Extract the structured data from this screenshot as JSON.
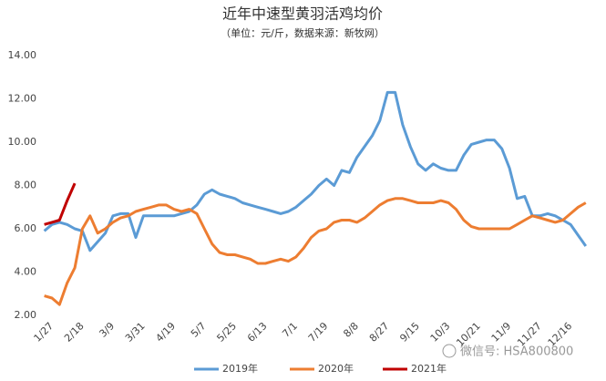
{
  "chart_data": {
    "type": "line",
    "title": "近年中速型黄羽活鸡均价",
    "subtitle": "（单位：元/斤，数据来源：新牧网）",
    "annotation": "微信号: HSA800800",
    "categories": [
      null,
      "1/27",
      null,
      null,
      null,
      "2/18",
      null,
      null,
      null,
      "3/9",
      null,
      null,
      null,
      "3/31",
      null,
      null,
      null,
      "4/19",
      null,
      null,
      null,
      "5/7",
      null,
      null,
      null,
      "5/25",
      null,
      null,
      null,
      "6/13",
      null,
      null,
      null,
      "7/1",
      null,
      null,
      null,
      "7/19",
      null,
      null,
      null,
      "8/8",
      null,
      null,
      null,
      "8/27",
      null,
      null,
      null,
      "9/15",
      null,
      null,
      null,
      "10/3",
      null,
      null,
      null,
      "10/21",
      null,
      null,
      null,
      "11/9",
      null,
      null,
      null,
      "11/27",
      null,
      null,
      null,
      "12/16",
      null,
      null
    ],
    "series": [
      {
        "name": "2019年",
        "color": "#5b9bd5",
        "values": [
          5.9,
          6.2,
          6.3,
          6.2,
          6.0,
          5.9,
          5.0,
          5.4,
          5.8,
          6.6,
          6.7,
          6.7,
          5.6,
          6.6,
          6.6,
          6.6,
          6.6,
          6.6,
          6.7,
          6.8,
          7.1,
          7.6,
          7.8,
          7.6,
          7.5,
          7.4,
          7.2,
          7.1,
          7.0,
          6.9,
          6.8,
          6.7,
          6.8,
          7.0,
          7.3,
          7.6,
          8.0,
          8.3,
          8.0,
          8.7,
          8.6,
          9.3,
          9.8,
          10.3,
          11.0,
          12.3,
          12.3,
          10.8,
          9.8,
          9.0,
          8.7,
          9.0,
          8.8,
          8.7,
          8.7,
          9.4,
          9.9,
          10.0,
          10.1,
          10.1,
          9.7,
          8.8,
          7.4,
          7.5,
          6.6,
          6.6,
          6.7,
          6.6,
          6.4,
          6.2,
          5.7,
          5.2
        ]
      },
      {
        "name": "2020年",
        "color": "#ed7d31",
        "values": [
          2.9,
          2.8,
          2.5,
          3.5,
          4.2,
          6.0,
          6.6,
          5.8,
          6.0,
          6.3,
          6.5,
          6.6,
          6.8,
          6.9,
          7.0,
          7.1,
          7.1,
          6.9,
          6.8,
          6.9,
          6.7,
          6.0,
          5.3,
          4.9,
          4.8,
          4.8,
          4.7,
          4.6,
          4.4,
          4.4,
          4.5,
          4.6,
          4.5,
          4.7,
          5.1,
          5.6,
          5.9,
          6.0,
          6.3,
          6.4,
          6.4,
          6.3,
          6.5,
          6.8,
          7.1,
          7.3,
          7.4,
          7.4,
          7.3,
          7.2,
          7.2,
          7.2,
          7.3,
          7.2,
          6.9,
          6.4,
          6.1,
          6.0,
          6.0,
          6.0,
          6.0,
          6.0,
          6.2,
          6.4,
          6.6,
          6.5,
          6.4,
          6.3,
          6.4,
          6.7,
          7.0,
          7.2
        ]
      },
      {
        "name": "2021年",
        "color": "#c00000",
        "values": [
          6.2,
          6.3,
          6.4,
          7.3,
          8.1,
          null,
          null,
          null,
          null,
          null,
          null,
          null,
          null,
          null,
          null,
          null,
          null,
          null,
          null,
          null,
          null,
          null,
          null,
          null,
          null,
          null,
          null,
          null,
          null,
          null,
          null,
          null,
          null,
          null,
          null,
          null,
          null,
          null,
          null,
          null,
          null,
          null,
          null,
          null,
          null,
          null,
          null,
          null,
          null,
          null,
          null,
          null,
          null,
          null,
          null,
          null,
          null,
          null,
          null,
          null,
          null,
          null,
          null,
          null,
          null,
          null,
          null,
          null,
          null,
          null,
          null,
          null
        ]
      }
    ],
    "ylim": [
      2,
      14
    ],
    "yticks": [
      {
        "value": 2,
        "label": "2.00"
      },
      {
        "value": 4,
        "label": "4.00"
      },
      {
        "value": 6,
        "label": "6.00"
      },
      {
        "value": 8,
        "label": "8.00"
      },
      {
        "value": 10,
        "label": "10.00"
      },
      {
        "value": 12,
        "label": "12.00"
      },
      {
        "value": 14,
        "label": "14.00"
      }
    ],
    "grid": false,
    "legend": "bottom"
  }
}
